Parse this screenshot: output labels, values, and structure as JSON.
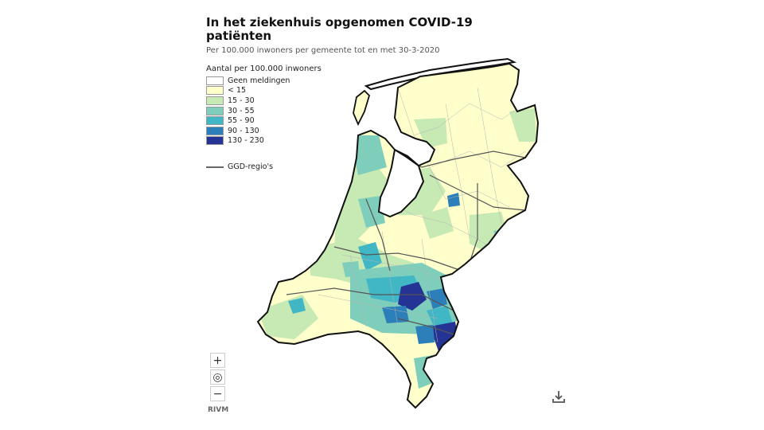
{
  "title": "In het ziekenhuis opgenomen COVID-19 patiënten",
  "subtitle": "Per 100.000 inwoners per gemeente tot en met 30-3-2020",
  "legend": {
    "title": "Aantal per 100.000 inwoners",
    "items": [
      {
        "label": "Geen meldingen",
        "color": "#ffffff"
      },
      {
        "label": "< 15",
        "color": "#ffffcc"
      },
      {
        "label": "15 - 30",
        "color": "#c7e9b4"
      },
      {
        "label": "30 - 55",
        "color": "#7fcdbb"
      },
      {
        "label": "55 - 90",
        "color": "#41b6c4"
      },
      {
        "label": "90 - 130",
        "color": "#2c7fb8"
      },
      {
        "label": "130 - 230",
        "color": "#253494"
      }
    ],
    "ggd_label": "GGD-regio's",
    "ggd_color": "#666666"
  },
  "controls": {
    "zoom_in": "+",
    "reset": "◎",
    "zoom_out": "−"
  },
  "credit": "RIVM",
  "icons": {
    "download": "download-icon"
  }
}
